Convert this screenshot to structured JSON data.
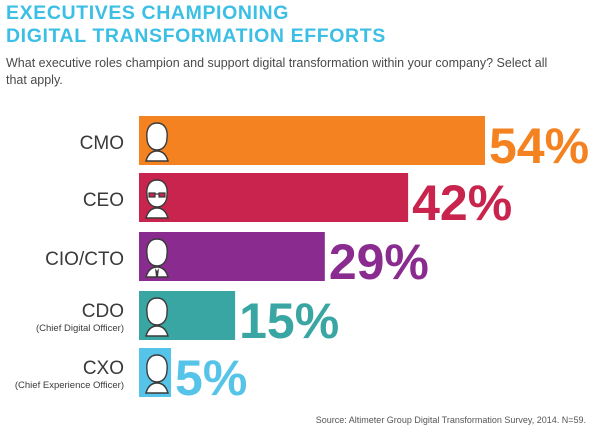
{
  "title": {
    "line1": "EXECUTIVES CHAMPIONING",
    "line2": "DIGITAL TRANSFORMATION EFFORTS"
  },
  "question": "What executive roles champion and support digital transformation within your company? Select all that apply.",
  "source": "Source: Altimeter Group Digital Transformation Survey, 2014. N=59.",
  "colors": {
    "title": "#3cbfe4",
    "text": "#3a3a3a"
  },
  "chart_data": {
    "type": "bar",
    "orientation": "horizontal",
    "unit": "%",
    "xlim": [
      0,
      54
    ],
    "categories": [
      "CMO",
      "CEO",
      "CIO/CTO",
      "CDO",
      "CXO"
    ],
    "sublabels": [
      "",
      "",
      "",
      "(Chief Digital Officer)",
      "(Chief Experience Officer)"
    ],
    "values": [
      54,
      42,
      29,
      15,
      5
    ],
    "value_labels": [
      "54%",
      "42%",
      "29%",
      "15%",
      "5%"
    ],
    "bar_colors": [
      "#f58220",
      "#c8244d",
      "#8a2b8f",
      "#3aa6a3",
      "#55c4e8"
    ],
    "icons": [
      "woman-silhouette-icon",
      "woman-glasses-silhouette-icon",
      "man-tie-silhouette-icon",
      "person-silhouette-icon",
      "person-silhouette-icon"
    ]
  }
}
